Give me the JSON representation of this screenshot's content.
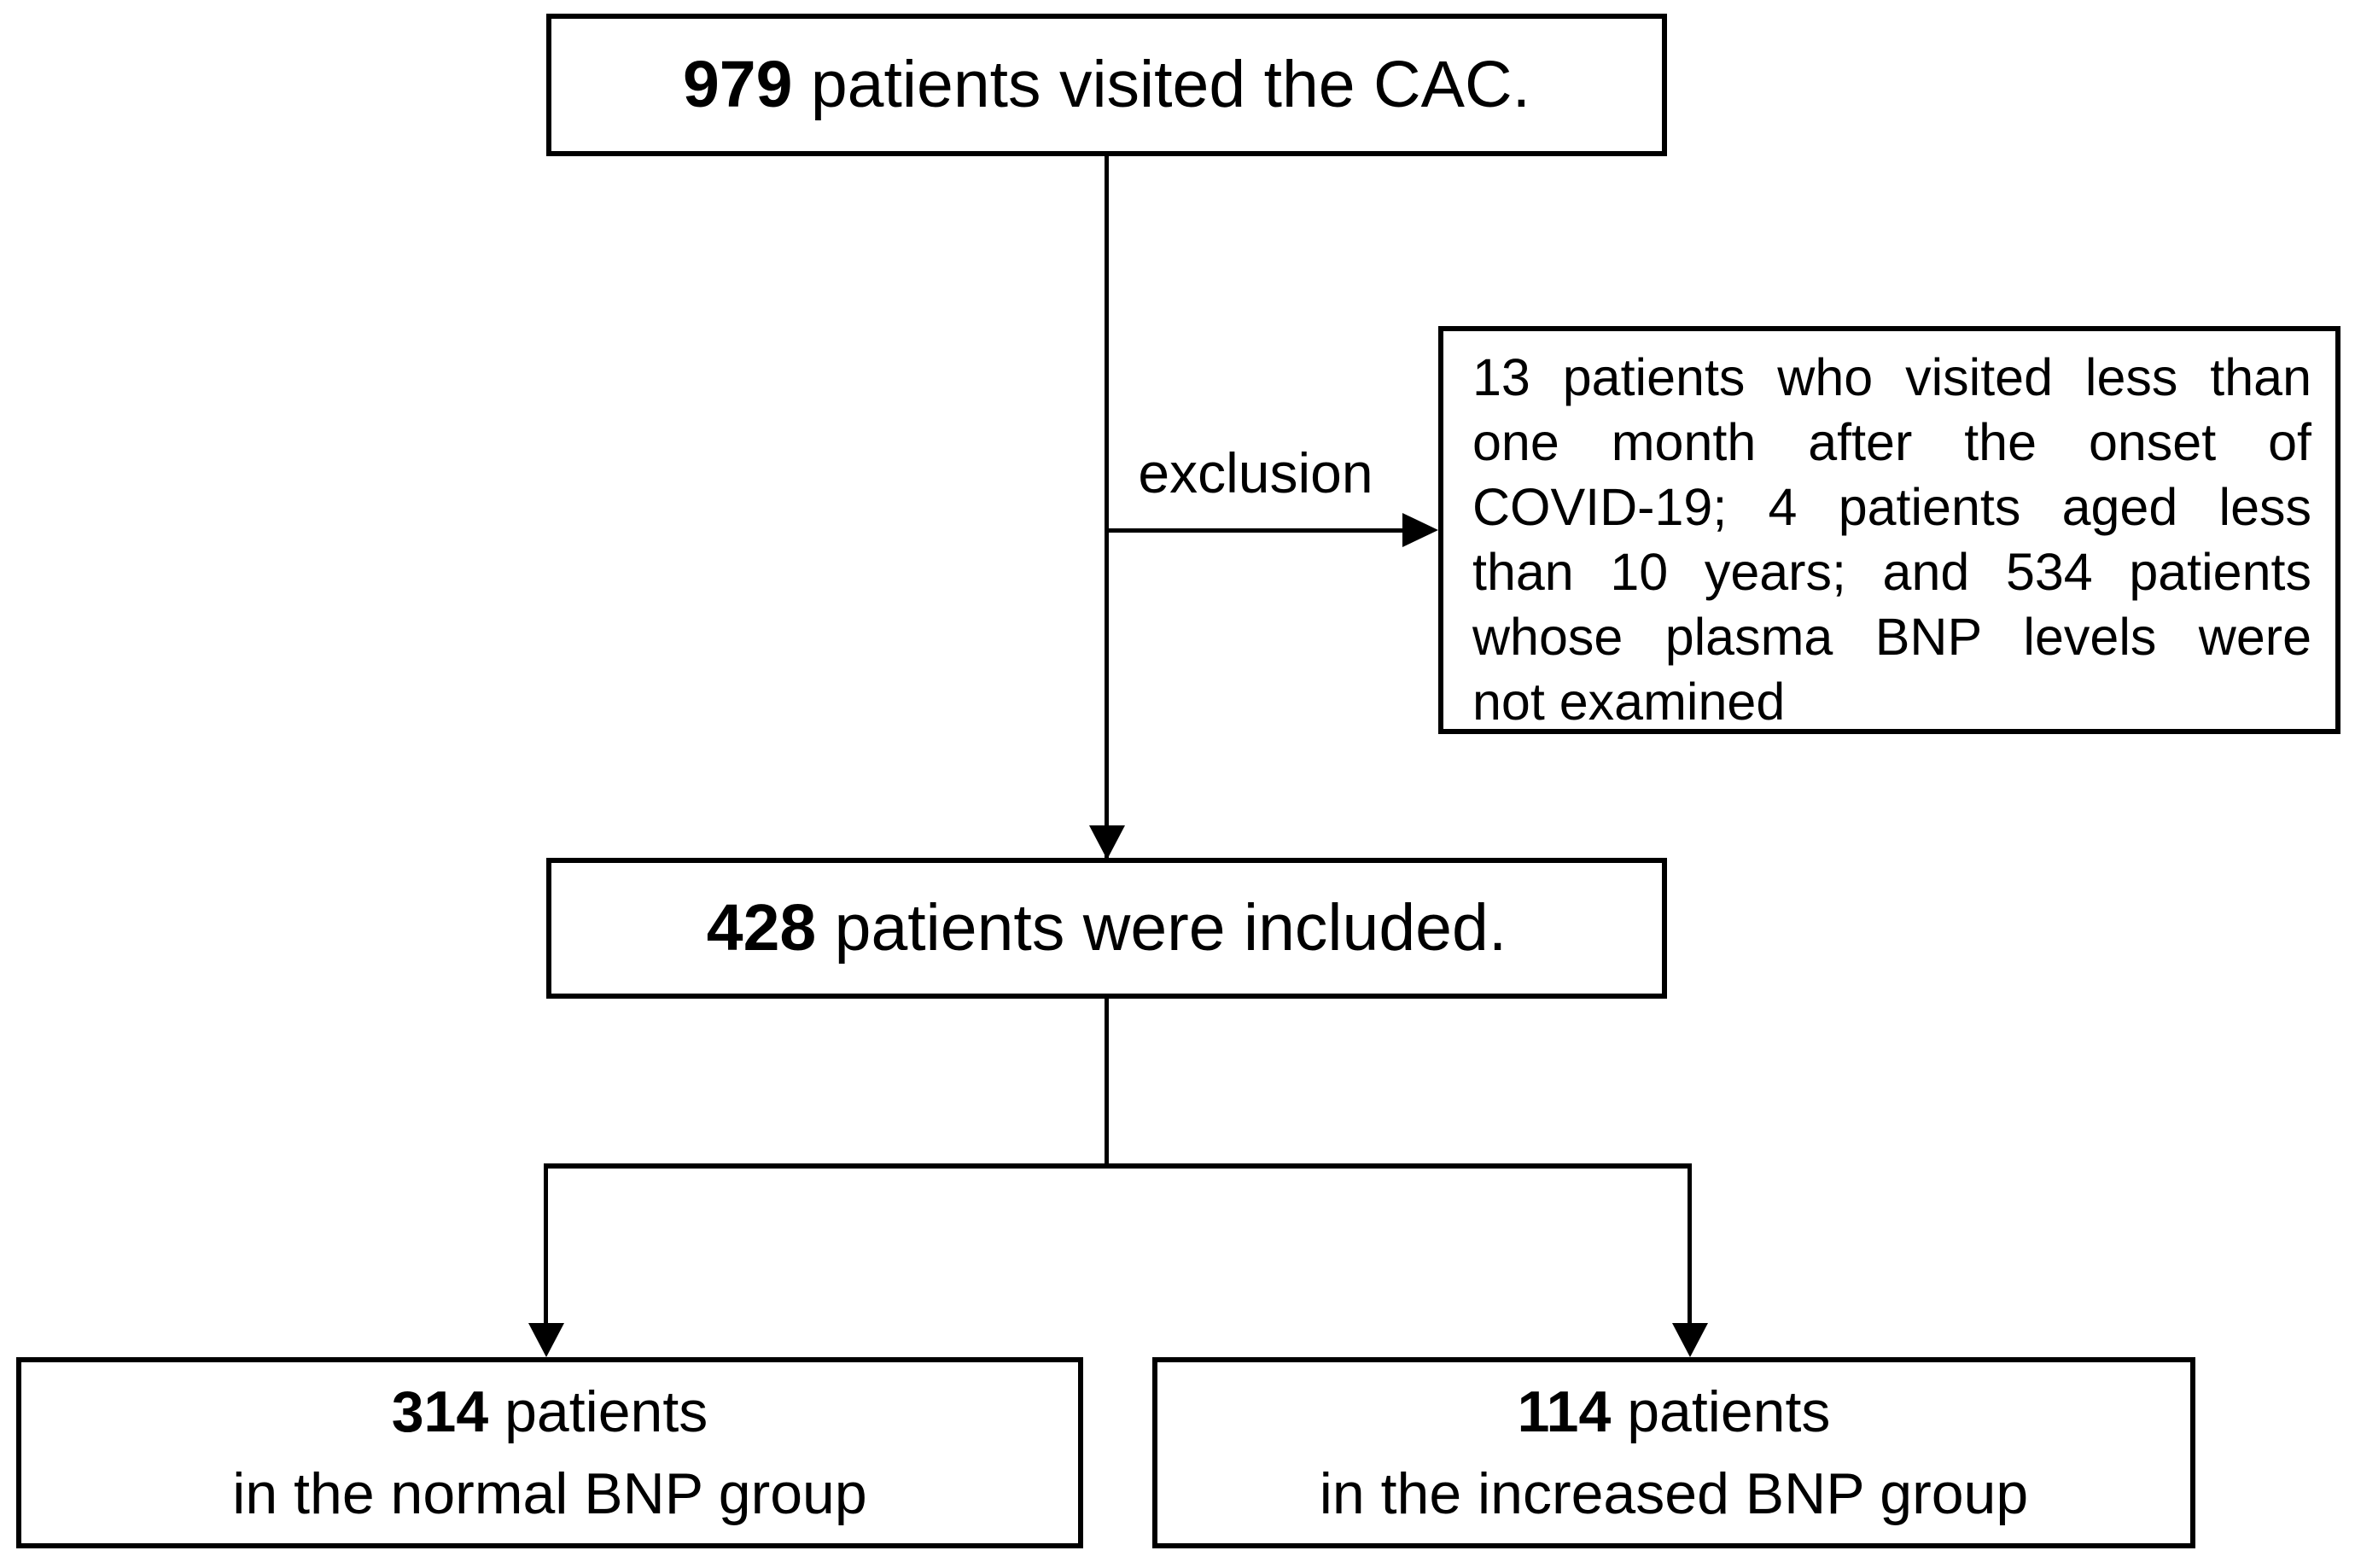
{
  "diagram": {
    "background_color": "#ffffff",
    "line_color": "#000000",
    "top_box": {
      "count": "979",
      "text": " patients visited the CAC."
    },
    "exclusion": {
      "arrow_label": "exclusion",
      "lines": [
        "13 patients who visited less than",
        "one month after the onset of",
        "COVID-19; 4 patients aged less",
        "than 10 years; and 534 patients",
        "whose plasma BNP levels were",
        "not examined"
      ]
    },
    "included_box": {
      "count": "428",
      "text": " patients were included."
    },
    "normal_bnp_box": {
      "count": "314",
      "line1_suffix": " patients",
      "line2": "in the normal BNP group"
    },
    "increased_bnp_box": {
      "count": "114",
      "line1_suffix": " patients",
      "line2": "in the increased BNP group"
    }
  }
}
